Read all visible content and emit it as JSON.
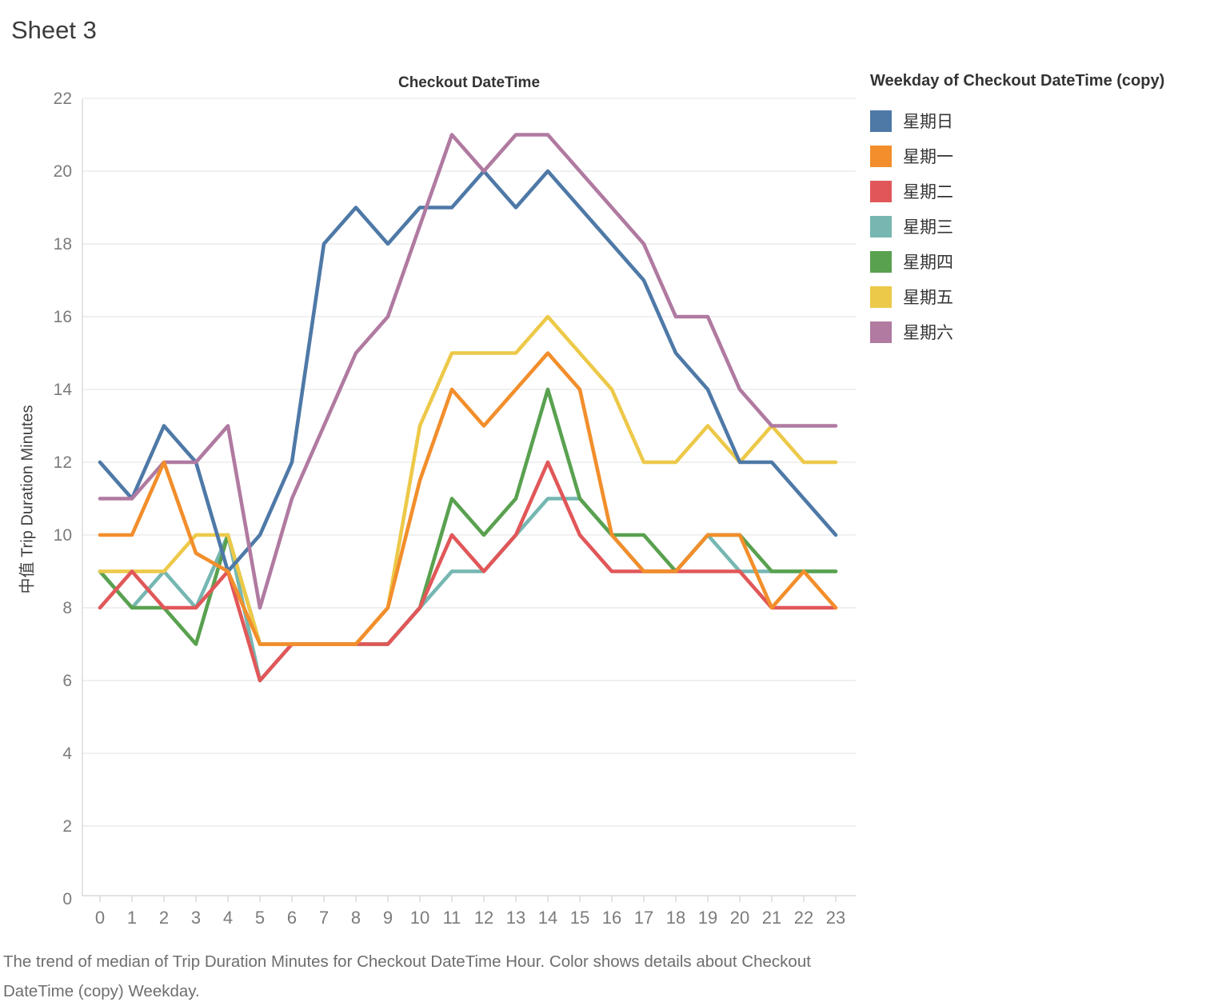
{
  "page_title": "Sheet 3",
  "chart": {
    "title": "Checkout DateTime",
    "y_axis_title": "中值 Trip Duration Minutes"
  },
  "legend": {
    "title": "Weekday of Checkout DateTime (copy)",
    "items": [
      {
        "label": "星期日",
        "color": "#4e79a7"
      },
      {
        "label": "星期一",
        "color": "#f28e2b"
      },
      {
        "label": "星期二",
        "color": "#e15759"
      },
      {
        "label": "星期三",
        "color": "#76b7b2"
      },
      {
        "label": "星期四",
        "color": "#59a14f"
      },
      {
        "label": "星期五",
        "color": "#edc949"
      },
      {
        "label": "星期六",
        "color": "#b07aa1"
      }
    ]
  },
  "caption": {
    "text": "The trend of median of Trip Duration Minutes for Checkout DateTime Hour.  Color shows details about Checkout DateTime (copy) Weekday."
  },
  "chart_data": {
    "type": "line",
    "title": "Checkout DateTime",
    "xlabel": "",
    "ylabel": "中值 Trip Duration Minutes",
    "x": [
      0,
      1,
      2,
      3,
      4,
      5,
      6,
      7,
      8,
      9,
      10,
      11,
      12,
      13,
      14,
      15,
      16,
      17,
      18,
      19,
      20,
      21,
      22,
      23
    ],
    "ylim": [
      0,
      22
    ],
    "y_ticks": [
      0,
      2,
      4,
      6,
      8,
      10,
      12,
      14,
      16,
      18,
      20,
      22
    ],
    "grid": "horizontal",
    "legend_position": "right",
    "series": [
      {
        "name": "星期日",
        "id": "sunday",
        "color": "#4e79a7",
        "values": [
          12,
          11,
          13,
          12,
          9,
          10,
          12,
          18,
          19,
          18,
          19,
          19,
          20,
          19,
          20,
          19,
          18,
          17,
          15,
          14,
          12,
          12,
          11,
          10
        ]
      },
      {
        "name": "星期一",
        "id": "monday",
        "color": "#f28e2b",
        "values": [
          10,
          10,
          12,
          9.5,
          9,
          7,
          7,
          7,
          7,
          8,
          11.5,
          14,
          13,
          14,
          15,
          14,
          10,
          9,
          9,
          10,
          10,
          8,
          9,
          8
        ]
      },
      {
        "name": "星期二",
        "id": "tuesday",
        "color": "#e15759",
        "values": [
          8,
          9,
          8,
          8,
          9,
          6,
          7,
          7,
          7,
          7,
          8,
          10,
          9,
          10,
          12,
          10,
          9,
          9,
          9,
          9,
          9,
          8,
          8,
          8
        ]
      },
      {
        "name": "星期三",
        "id": "wednesday",
        "color": "#76b7b2",
        "values": [
          9,
          8,
          9,
          8,
          10,
          6,
          7,
          7,
          7,
          7,
          8,
          9,
          9,
          10,
          11,
          11,
          10,
          9,
          9,
          10,
          9,
          9,
          9,
          9
        ]
      },
      {
        "name": "星期四",
        "id": "thursday",
        "color": "#59a14f",
        "values": [
          9,
          8,
          8,
          7,
          10,
          7,
          7,
          7,
          7,
          7,
          8,
          11,
          10,
          11,
          14,
          11,
          10,
          10,
          9,
          10,
          10,
          9,
          9,
          9
        ]
      },
      {
        "name": "星期五",
        "id": "friday",
        "color": "#edc949",
        "values": [
          9,
          9,
          9,
          10,
          10,
          7,
          7,
          7,
          7,
          8,
          13,
          15,
          15,
          15,
          16,
          15,
          14,
          12,
          12,
          13,
          12,
          13,
          12,
          12
        ]
      },
      {
        "name": "星期六",
        "id": "saturday",
        "color": "#b07aa1",
        "values": [
          11,
          11,
          12,
          12,
          13,
          8,
          11,
          13,
          15,
          16,
          18.5,
          21,
          20,
          21,
          21,
          20,
          19,
          18,
          16,
          16,
          14,
          13,
          13,
          13
        ]
      }
    ],
    "draw_order": [
      "wednesday",
      "thursday",
      "friday",
      "tuesday",
      "sunday",
      "saturday",
      "monday"
    ]
  }
}
